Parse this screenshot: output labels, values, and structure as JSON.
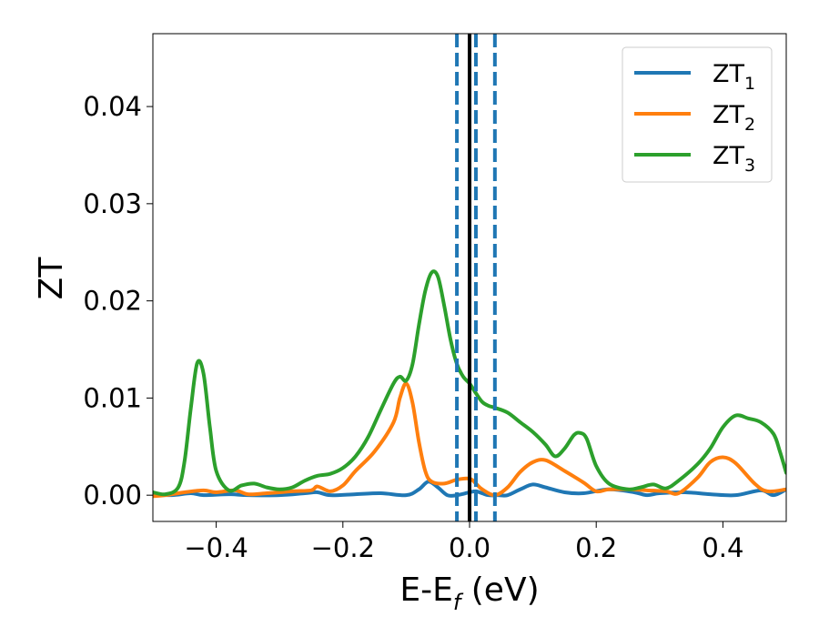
{
  "chart_data": {
    "type": "line",
    "xlabel": {
      "main": "E-E",
      "sub": "f",
      "suffix": " (eV)"
    },
    "ylabel": "ZT",
    "xlim": [
      -0.5,
      0.5
    ],
    "ylim": [
      -0.0027,
      0.0475
    ],
    "xticks": [
      -0.4,
      -0.2,
      0.0,
      0.2,
      0.4
    ],
    "xtick_labels": [
      "−0.4",
      "−0.2",
      "0.0",
      "0.2",
      "0.4"
    ],
    "yticks": [
      0.0,
      0.01,
      0.02,
      0.03,
      0.04
    ],
    "ytick_labels": [
      "0.00",
      "0.01",
      "0.02",
      "0.03",
      "0.04"
    ],
    "grid": false,
    "legend_position": "top-right",
    "series": [
      {
        "name": "ZT",
        "name_sub": "1",
        "color": "#1f77b4",
        "points": [
          [
            -0.5,
            0.0001
          ],
          [
            -0.47,
            0.0
          ],
          [
            -0.44,
            0.0002
          ],
          [
            -0.42,
            0.0
          ],
          [
            -0.38,
            0.0001
          ],
          [
            -0.35,
            0.0
          ],
          [
            -0.3,
            0.0
          ],
          [
            -0.26,
            0.0002
          ],
          [
            -0.24,
            0.0003
          ],
          [
            -0.22,
            0.0
          ],
          [
            -0.18,
            0.0001
          ],
          [
            -0.14,
            0.0002
          ],
          [
            -0.1,
            0.0
          ],
          [
            -0.08,
            0.0006
          ],
          [
            -0.065,
            0.0014
          ],
          [
            -0.05,
            0.0008
          ],
          [
            -0.035,
            0.0
          ],
          [
            -0.02,
            0.0
          ],
          [
            0.0,
            0.0003
          ],
          [
            0.01,
            0.0004
          ],
          [
            0.02,
            0.0002
          ],
          [
            0.03,
            0.0
          ],
          [
            0.045,
            0.0
          ],
          [
            0.06,
            0.0
          ],
          [
            0.08,
            0.0006
          ],
          [
            0.1,
            0.0011
          ],
          [
            0.12,
            0.0008
          ],
          [
            0.15,
            0.0003
          ],
          [
            0.18,
            0.0002
          ],
          [
            0.22,
            0.0006
          ],
          [
            0.26,
            0.0003
          ],
          [
            0.28,
            0.0
          ],
          [
            0.3,
            0.0002
          ],
          [
            0.34,
            0.0003
          ],
          [
            0.38,
            0.0001
          ],
          [
            0.42,
            0.0
          ],
          [
            0.46,
            0.0005
          ],
          [
            0.48,
            0.0
          ],
          [
            0.5,
            0.0006
          ]
        ]
      },
      {
        "name": "ZT",
        "name_sub": "2",
        "color": "#ff7f0e",
        "points": [
          [
            -0.5,
            -0.0001
          ],
          [
            -0.48,
            0.0
          ],
          [
            -0.45,
            0.0003
          ],
          [
            -0.42,
            0.0005
          ],
          [
            -0.4,
            0.0003
          ],
          [
            -0.37,
            0.0005
          ],
          [
            -0.35,
            0.0001
          ],
          [
            -0.32,
            0.0002
          ],
          [
            -0.28,
            0.0004
          ],
          [
            -0.25,
            0.0005
          ],
          [
            -0.24,
            0.0009
          ],
          [
            -0.22,
            0.0004
          ],
          [
            -0.2,
            0.001
          ],
          [
            -0.18,
            0.0025
          ],
          [
            -0.15,
            0.0045
          ],
          [
            -0.12,
            0.0075
          ],
          [
            -0.11,
            0.01
          ],
          [
            -0.1,
            0.0115
          ],
          [
            -0.09,
            0.0095
          ],
          [
            -0.08,
            0.0055
          ],
          [
            -0.07,
            0.0025
          ],
          [
            -0.06,
            0.0014
          ],
          [
            -0.04,
            0.0012
          ],
          [
            -0.02,
            0.0016
          ],
          [
            0.0,
            0.0017
          ],
          [
            0.01,
            0.0012
          ],
          [
            0.02,
            0.0006
          ],
          [
            0.04,
            0.0
          ],
          [
            0.06,
            0.0008
          ],
          [
            0.08,
            0.0024
          ],
          [
            0.1,
            0.0034
          ],
          [
            0.12,
            0.0036
          ],
          [
            0.15,
            0.0025
          ],
          [
            0.18,
            0.0013
          ],
          [
            0.2,
            0.0004
          ],
          [
            0.22,
            0.0006
          ],
          [
            0.25,
            0.0006
          ],
          [
            0.28,
            0.0005
          ],
          [
            0.31,
            0.0004
          ],
          [
            0.33,
            0.0002
          ],
          [
            0.36,
            0.0018
          ],
          [
            0.38,
            0.0034
          ],
          [
            0.4,
            0.0039
          ],
          [
            0.42,
            0.0033
          ],
          [
            0.45,
            0.0012
          ],
          [
            0.47,
            0.0004
          ],
          [
            0.5,
            0.0006
          ]
        ]
      },
      {
        "name": "ZT",
        "name_sub": "3",
        "color": "#2ca02c",
        "points": [
          [
            -0.5,
            0.0003
          ],
          [
            -0.48,
            0.0001
          ],
          [
            -0.46,
            0.0008
          ],
          [
            -0.45,
            0.0035
          ],
          [
            -0.44,
            0.009
          ],
          [
            -0.43,
            0.0136
          ],
          [
            -0.42,
            0.0125
          ],
          [
            -0.41,
            0.007
          ],
          [
            -0.4,
            0.0025
          ],
          [
            -0.38,
            0.0005
          ],
          [
            -0.36,
            0.001
          ],
          [
            -0.34,
            0.0012
          ],
          [
            -0.32,
            0.0008
          ],
          [
            -0.3,
            0.0006
          ],
          [
            -0.28,
            0.0008
          ],
          [
            -0.26,
            0.0015
          ],
          [
            -0.24,
            0.002
          ],
          [
            -0.22,
            0.0022
          ],
          [
            -0.2,
            0.0028
          ],
          [
            -0.18,
            0.004
          ],
          [
            -0.16,
            0.006
          ],
          [
            -0.14,
            0.0088
          ],
          [
            -0.12,
            0.0115
          ],
          [
            -0.11,
            0.0122
          ],
          [
            -0.1,
            0.0118
          ],
          [
            -0.09,
            0.0135
          ],
          [
            -0.08,
            0.0175
          ],
          [
            -0.07,
            0.021
          ],
          [
            -0.06,
            0.0229
          ],
          [
            -0.05,
            0.0225
          ],
          [
            -0.04,
            0.0195
          ],
          [
            -0.03,
            0.016
          ],
          [
            -0.02,
            0.0135
          ],
          [
            -0.01,
            0.0122
          ],
          [
            0.0,
            0.0115
          ],
          [
            0.01,
            0.0105
          ],
          [
            0.02,
            0.0096
          ],
          [
            0.03,
            0.0092
          ],
          [
            0.04,
            0.009
          ],
          [
            0.06,
            0.0085
          ],
          [
            0.08,
            0.0075
          ],
          [
            0.1,
            0.0065
          ],
          [
            0.12,
            0.0052
          ],
          [
            0.135,
            0.004
          ],
          [
            0.15,
            0.0048
          ],
          [
            0.165,
            0.0062
          ],
          [
            0.175,
            0.0064
          ],
          [
            0.185,
            0.0058
          ],
          [
            0.2,
            0.003
          ],
          [
            0.22,
            0.0012
          ],
          [
            0.25,
            0.0006
          ],
          [
            0.27,
            0.0008
          ],
          [
            0.29,
            0.0011
          ],
          [
            0.31,
            0.0007
          ],
          [
            0.33,
            0.0015
          ],
          [
            0.36,
            0.0032
          ],
          [
            0.38,
            0.0048
          ],
          [
            0.4,
            0.007
          ],
          [
            0.42,
            0.0082
          ],
          [
            0.44,
            0.0079
          ],
          [
            0.46,
            0.0075
          ],
          [
            0.48,
            0.0063
          ],
          [
            0.49,
            0.0045
          ],
          [
            0.5,
            0.0023
          ]
        ]
      }
    ],
    "vertical_lines": [
      {
        "x": 0.0,
        "color": "#000000",
        "style": "solid"
      },
      {
        "x": -0.02,
        "color": "#1f77b4",
        "style": "dashed"
      },
      {
        "x": 0.01,
        "color": "#1f77b4",
        "style": "dashed"
      },
      {
        "x": 0.04,
        "color": "#1f77b4",
        "style": "dashed"
      }
    ]
  }
}
